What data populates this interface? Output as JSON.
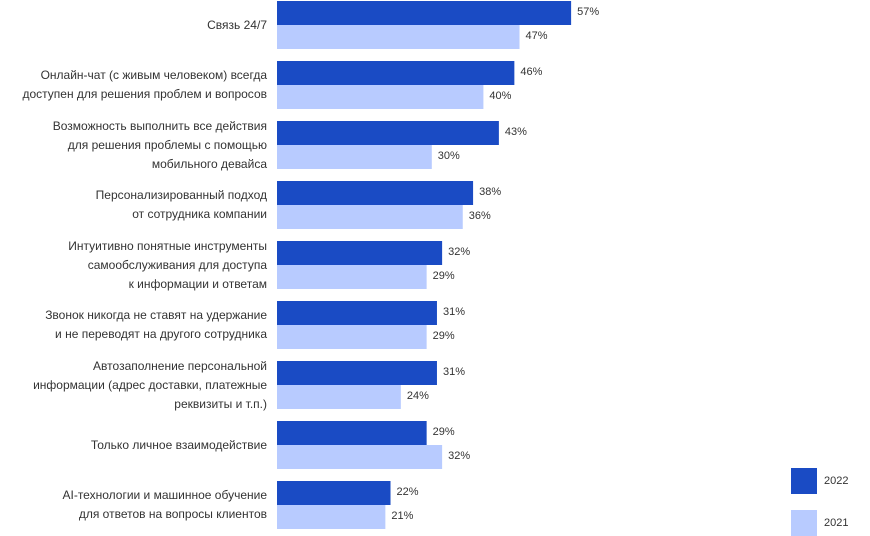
{
  "chart_data": {
    "type": "bar",
    "orientation": "horizontal",
    "title": "",
    "xlabel": "",
    "ylabel": "",
    "xlim": [
      0,
      100
    ],
    "categories": [
      [
        "Связь 24/7"
      ],
      [
        "Онлайн-чат (с живым человеком) всегда",
        "доступен для решения проблем и вопросов"
      ],
      [
        "Возможность выполнить все действия",
        "для решения проблемы с помощью",
        "мобильного девайса"
      ],
      [
        "Персонализированный подход",
        "от сотрудника компании"
      ],
      [
        "Интуитивно понятные инструменты",
        "самообслуживания для доступа",
        "к информации и ответам"
      ],
      [
        "Звонок никогда не ставят на удержание",
        "и не переводят на другого сотрудника"
      ],
      [
        "Автозаполнение персональной",
        "информации (адрес доставки, платежные",
        "реквизиты и т.п.)"
      ],
      [
        "Только личное взаимодействие"
      ],
      [
        "AI-технологии и машинное обучение",
        "для ответов на вопросы клиентов"
      ]
    ],
    "series": [
      {
        "name": "2022",
        "color": "#1a4bc4",
        "values": [
          57,
          46,
          43,
          38,
          32,
          31,
          31,
          29,
          22
        ],
        "labels": [
          "57%",
          "46%",
          "43%",
          "38%",
          "32%",
          "31%",
          "31%",
          "29%",
          "22%"
        ]
      },
      {
        "name": "2021",
        "color": "#b8cbff",
        "values": [
          47,
          40,
          30,
          36,
          29,
          29,
          24,
          32,
          21
        ],
        "labels": [
          "47%",
          "40%",
          "30%",
          "36%",
          "29%",
          "29%",
          "24%",
          "32%",
          "21%"
        ]
      }
    ],
    "legend": {
      "position": "bottom-right",
      "entries": [
        {
          "label": "2022",
          "color": "#1a4bc4"
        },
        {
          "label": "2021",
          "color": "#b8cbff"
        }
      ]
    }
  }
}
